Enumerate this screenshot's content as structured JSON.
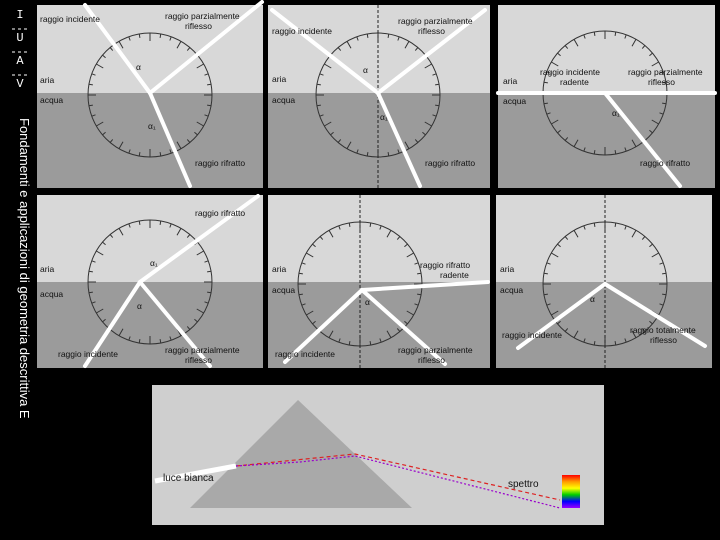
{
  "sidebar": {
    "letters": [
      "I",
      "U",
      "A",
      "V"
    ],
    "title": "Fondamenti e applicazioni di geometria descrittiva E"
  },
  "panels": [
    {
      "labels": [
        {
          "lines": [
            "raggio incidente"
          ]
        },
        {
          "lines": [
            "raggio parzialmente",
            "riflesso"
          ]
        },
        {
          "lines": [
            "aria"
          ]
        },
        {
          "lines": [
            "acqua"
          ]
        },
        {
          "lines": [
            "raggio rifratto"
          ]
        },
        {
          "lines": [
            "α"
          ]
        },
        {
          "lines": [
            "α₁"
          ]
        }
      ]
    },
    {
      "labels": [
        {
          "lines": [
            "raggio incidente"
          ]
        },
        {
          "lines": [
            "raggio parzialmente",
            "riflesso"
          ]
        },
        {
          "lines": [
            "aria"
          ]
        },
        {
          "lines": [
            "acqua"
          ]
        },
        {
          "lines": [
            "raggio rifratto"
          ]
        },
        {
          "lines": [
            "α"
          ]
        },
        {
          "lines": [
            "α₁"
          ]
        }
      ]
    },
    {
      "labels": [
        {
          "lines": [
            "raggio incidente",
            "radente"
          ]
        },
        {
          "lines": [
            "raggio parzialmente",
            "riflesso"
          ]
        },
        {
          "lines": [
            "aria"
          ]
        },
        {
          "lines": [
            "acqua"
          ]
        },
        {
          "lines": [
            "raggio rifratto"
          ]
        },
        {
          "lines": [
            "α₁"
          ]
        }
      ]
    },
    {
      "labels": [
        {
          "lines": [
            "raggio rifratto"
          ]
        },
        {
          "lines": [
            "aria"
          ]
        },
        {
          "lines": [
            "acqua"
          ]
        },
        {
          "lines": [
            "raggio incidente"
          ]
        },
        {
          "lines": [
            "raggio parzialmente",
            "riflesso"
          ]
        },
        {
          "lines": [
            "α₁"
          ]
        },
        {
          "lines": [
            "α"
          ]
        }
      ]
    },
    {
      "labels": [
        {
          "lines": [
            "raggio rifratto",
            "radente"
          ]
        },
        {
          "lines": [
            "aria"
          ]
        },
        {
          "lines": [
            "acqua"
          ]
        },
        {
          "lines": [
            "raggio incidente"
          ]
        },
        {
          "lines": [
            "raggio parzialmente",
            "riflesso"
          ]
        },
        {
          "lines": [
            "α"
          ]
        }
      ]
    },
    {
      "labels": [
        {
          "lines": [
            "aria"
          ]
        },
        {
          "lines": [
            "acqua"
          ]
        },
        {
          "lines": [
            "raggio incidente"
          ]
        },
        {
          "lines": [
            "raggio totalmente",
            "riflesso"
          ]
        },
        {
          "lines": [
            "α"
          ]
        }
      ]
    }
  ],
  "prism": {
    "input": "luce bianca",
    "output": "spettro"
  }
}
